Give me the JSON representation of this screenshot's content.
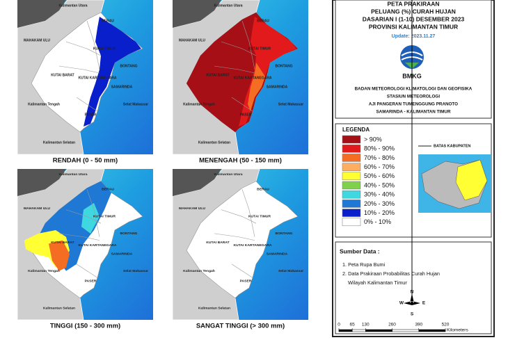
{
  "header": {
    "lines": [
      "PETA PRAKIRAAN",
      "PELUANG (%) CURAH HUJAN",
      "DASARIAN I (1-10) DESEMBER 2023",
      "PROVINSI KALIMANTAN TIMUR"
    ],
    "update": "Update: 2023.11.27",
    "logo": "BMKG",
    "agency": [
      "BADAN METEOROLOGI KLIMATOLOGI DAN GEOFISIKA",
      "STASIUN METEOROLOGI",
      "AJI PANGERAN TUMENGGUNG PRANOTO",
      "SAMARINDA - KALIMANTAN TIMUR"
    ]
  },
  "maps": [
    {
      "caption": "RENDAH (0 - 50 mm)"
    },
    {
      "caption": "MENENGAH (50 - 150 mm)"
    },
    {
      "caption": "TINGGI (150 - 300 mm)"
    },
    {
      "caption": "SANGAT TINGGI (> 300 mm)"
    }
  ],
  "regions": [
    "Kalimantan Utara",
    "MAHAKAM ULU",
    "BERAU",
    "KUTAI TIMUR",
    "BONTANG",
    "KUTAI BARAT",
    "KUTAI KARTANEGARA",
    "SAMARINDA",
    "Kalimantan Tengah",
    "Selat Makassar",
    "PASER",
    "Kalimantan Selatan"
  ],
  "legend": {
    "title": "LEGENDA",
    "items": [
      {
        "label": "> 90%",
        "color": "#a50f15"
      },
      {
        "label": "80% - 90%",
        "color": "#e31a1c"
      },
      {
        "label": "70% - 80%",
        "color": "#f46d23"
      },
      {
        "label": "60% - 70%",
        "color": "#fdae61"
      },
      {
        "label": "50% - 60%",
        "color": "#ffff33"
      },
      {
        "label": "40% - 50%",
        "color": "#7fd14b"
      },
      {
        "label": "30% - 40%",
        "color": "#40d8e0"
      },
      {
        "label": "20% - 30%",
        "color": "#1f78d4"
      },
      {
        "label": "10% - 20%",
        "color": "#0a1fcc"
      },
      {
        "label": "0% - 10%",
        "color": "#ffffff"
      }
    ],
    "boundary": "BATAS KABUPATEN"
  },
  "source": {
    "title": "Sumber Data :",
    "items": [
      "1. Peta Rupa Bumi",
      "2. Data Prakiraan Probabilitas Curah Hujan",
      "Wilayah Kalimantan Timur"
    ]
  },
  "compass": [
    "N",
    "S",
    "W",
    "E"
  ],
  "scale": {
    "ticks": [
      0,
      65,
      130,
      260,
      390,
      520
    ],
    "unit": "Kilometers"
  }
}
